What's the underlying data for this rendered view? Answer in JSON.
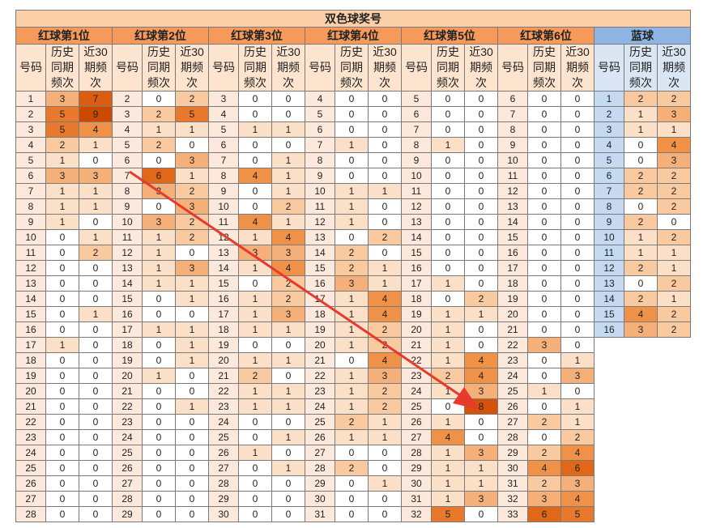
{
  "title": "双色球奖号",
  "groups": [
    {
      "label": "红球第1位",
      "type": "red"
    },
    {
      "label": "红球第2位",
      "type": "red"
    },
    {
      "label": "红球第3位",
      "type": "red"
    },
    {
      "label": "红球第4位",
      "type": "red"
    },
    {
      "label": "红球第5位",
      "type": "red"
    },
    {
      "label": "红球第6位",
      "type": "red"
    },
    {
      "label": "蓝球",
      "type": "blue"
    }
  ],
  "sub_headers": [
    "号码",
    "历史同期频次",
    "近30期频次"
  ],
  "rows": [
    [
      [
        1,
        3,
        7
      ],
      [
        2,
        0,
        2
      ],
      [
        3,
        0,
        0
      ],
      [
        4,
        0,
        0
      ],
      [
        5,
        0,
        0
      ],
      [
        6,
        0,
        0
      ],
      [
        1,
        2,
        2
      ]
    ],
    [
      [
        2,
        5,
        9
      ],
      [
        3,
        2,
        5
      ],
      [
        4,
        0,
        0
      ],
      [
        5,
        0,
        0
      ],
      [
        6,
        0,
        0
      ],
      [
        7,
        0,
        0
      ],
      [
        2,
        1,
        3
      ]
    ],
    [
      [
        3,
        5,
        4
      ],
      [
        4,
        1,
        1
      ],
      [
        5,
        1,
        1
      ],
      [
        6,
        0,
        0
      ],
      [
        7,
        0,
        0
      ],
      [
        8,
        0,
        0
      ],
      [
        3,
        1,
        1
      ]
    ],
    [
      [
        4,
        2,
        1
      ],
      [
        5,
        2,
        0
      ],
      [
        6,
        0,
        0
      ],
      [
        7,
        1,
        0
      ],
      [
        8,
        1,
        0
      ],
      [
        9,
        0,
        0
      ],
      [
        4,
        0,
        4
      ]
    ],
    [
      [
        5,
        1,
        0
      ],
      [
        6,
        0,
        3
      ],
      [
        7,
        0,
        1
      ],
      [
        8,
        0,
        0
      ],
      [
        9,
        0,
        0
      ],
      [
        10,
        0,
        0
      ],
      [
        5,
        0,
        3
      ]
    ],
    [
      [
        6,
        3,
        3
      ],
      [
        7,
        6,
        1
      ],
      [
        8,
        4,
        1
      ],
      [
        9,
        0,
        0
      ],
      [
        10,
        0,
        0
      ],
      [
        11,
        0,
        0
      ],
      [
        6,
        2,
        2
      ]
    ],
    [
      [
        7,
        1,
        1
      ],
      [
        8,
        3,
        2
      ],
      [
        9,
        0,
        1
      ],
      [
        10,
        1,
        1
      ],
      [
        11,
        0,
        0
      ],
      [
        12,
        0,
        0
      ],
      [
        7,
        2,
        2
      ]
    ],
    [
      [
        8,
        1,
        1
      ],
      [
        9,
        0,
        3
      ],
      [
        10,
        0,
        2
      ],
      [
        11,
        1,
        0
      ],
      [
        12,
        0,
        0
      ],
      [
        13,
        0,
        0
      ],
      [
        8,
        0,
        2
      ]
    ],
    [
      [
        9,
        1,
        0
      ],
      [
        10,
        3,
        2
      ],
      [
        11,
        4,
        1
      ],
      [
        12,
        1,
        0
      ],
      [
        13,
        0,
        0
      ],
      [
        14,
        0,
        0
      ],
      [
        9,
        2,
        0
      ]
    ],
    [
      [
        10,
        0,
        1
      ],
      [
        11,
        1,
        2
      ],
      [
        12,
        1,
        4
      ],
      [
        13,
        0,
        2
      ],
      [
        14,
        0,
        0
      ],
      [
        15,
        0,
        0
      ],
      [
        10,
        1,
        2
      ]
    ],
    [
      [
        11,
        0,
        2
      ],
      [
        12,
        1,
        0
      ],
      [
        13,
        3,
        3
      ],
      [
        14,
        2,
        0
      ],
      [
        15,
        0,
        0
      ],
      [
        16,
        0,
        0
      ],
      [
        11,
        1,
        1
      ]
    ],
    [
      [
        12,
        0,
        0
      ],
      [
        13,
        1,
        3
      ],
      [
        14,
        1,
        4
      ],
      [
        15,
        2,
        1
      ],
      [
        16,
        0,
        0
      ],
      [
        17,
        0,
        0
      ],
      [
        12,
        2,
        1
      ]
    ],
    [
      [
        13,
        0,
        0
      ],
      [
        14,
        1,
        1
      ],
      [
        15,
        0,
        2
      ],
      [
        16,
        3,
        1
      ],
      [
        17,
        1,
        0
      ],
      [
        18,
        0,
        0
      ],
      [
        13,
        0,
        2
      ]
    ],
    [
      [
        14,
        0,
        0
      ],
      [
        15,
        0,
        1
      ],
      [
        16,
        1,
        2
      ],
      [
        17,
        1,
        4
      ],
      [
        18,
        0,
        2
      ],
      [
        19,
        0,
        0
      ],
      [
        14,
        2,
        1
      ]
    ],
    [
      [
        15,
        0,
        1
      ],
      [
        16,
        0,
        0
      ],
      [
        17,
        1,
        3
      ],
      [
        18,
        1,
        4
      ],
      [
        19,
        1,
        1
      ],
      [
        20,
        0,
        0
      ],
      [
        15,
        4,
        2
      ]
    ],
    [
      [
        16,
        0,
        0
      ],
      [
        17,
        1,
        1
      ],
      [
        18,
        1,
        1
      ],
      [
        19,
        1,
        2
      ],
      [
        20,
        1,
        0
      ],
      [
        21,
        0,
        0
      ],
      [
        16,
        3,
        2
      ]
    ],
    [
      [
        17,
        1,
        0
      ],
      [
        18,
        0,
        1
      ],
      [
        19,
        0,
        0
      ],
      [
        20,
        1,
        2
      ],
      [
        21,
        1,
        0
      ],
      [
        22,
        3,
        0
      ],
      null
    ],
    [
      [
        18,
        0,
        0
      ],
      [
        19,
        0,
        1
      ],
      [
        20,
        1,
        1
      ],
      [
        21,
        0,
        4
      ],
      [
        22,
        1,
        4
      ],
      [
        23,
        0,
        1
      ],
      null
    ],
    [
      [
        19,
        0,
        0
      ],
      [
        20,
        1,
        0
      ],
      [
        21,
        2,
        0
      ],
      [
        22,
        1,
        3
      ],
      [
        23,
        2,
        4
      ],
      [
        24,
        0,
        3
      ],
      null
    ],
    [
      [
        20,
        0,
        0
      ],
      [
        21,
        0,
        0
      ],
      [
        22,
        1,
        1
      ],
      [
        23,
        1,
        2
      ],
      [
        24,
        1,
        3
      ],
      [
        25,
        1,
        0
      ],
      null
    ],
    [
      [
        21,
        0,
        0
      ],
      [
        22,
        0,
        1
      ],
      [
        23,
        1,
        1
      ],
      [
        24,
        1,
        2
      ],
      [
        25,
        0,
        8
      ],
      [
        26,
        0,
        1
      ],
      null
    ],
    [
      [
        22,
        0,
        0
      ],
      [
        23,
        0,
        0
      ],
      [
        24,
        0,
        0
      ],
      [
        25,
        2,
        1
      ],
      [
        26,
        1,
        0
      ],
      [
        27,
        2,
        1
      ],
      null
    ],
    [
      [
        23,
        0,
        0
      ],
      [
        24,
        0,
        0
      ],
      [
        25,
        0,
        1
      ],
      [
        26,
        1,
        1
      ],
      [
        27,
        4,
        0
      ],
      [
        28,
        0,
        2
      ],
      null
    ],
    [
      [
        24,
        0,
        0
      ],
      [
        25,
        0,
        0
      ],
      [
        26,
        1,
        0
      ],
      [
        27,
        0,
        0
      ],
      [
        28,
        1,
        3
      ],
      [
        29,
        2,
        4
      ],
      null
    ],
    [
      [
        25,
        0,
        0
      ],
      [
        26,
        0,
        0
      ],
      [
        27,
        0,
        1
      ],
      [
        28,
        2,
        0
      ],
      [
        29,
        1,
        1
      ],
      [
        30,
        4,
        6
      ],
      null
    ],
    [
      [
        26,
        0,
        0
      ],
      [
        27,
        0,
        0
      ],
      [
        28,
        0,
        0
      ],
      [
        29,
        0,
        1
      ],
      [
        30,
        1,
        1
      ],
      [
        31,
        2,
        3
      ],
      null
    ],
    [
      [
        27,
        0,
        0
      ],
      [
        28,
        0,
        0
      ],
      [
        29,
        0,
        0
      ],
      [
        30,
        0,
        0
      ],
      [
        31,
        1,
        3
      ],
      [
        32,
        3,
        4
      ],
      null
    ],
    [
      [
        28,
        0,
        0
      ],
      [
        29,
        0,
        0
      ],
      [
        30,
        0,
        0
      ],
      [
        31,
        0,
        0
      ],
      [
        32,
        5,
        0
      ],
      [
        33,
        6,
        5
      ],
      null
    ]
  ],
  "annotation": {
    "arrow_color": "#e8392c"
  }
}
